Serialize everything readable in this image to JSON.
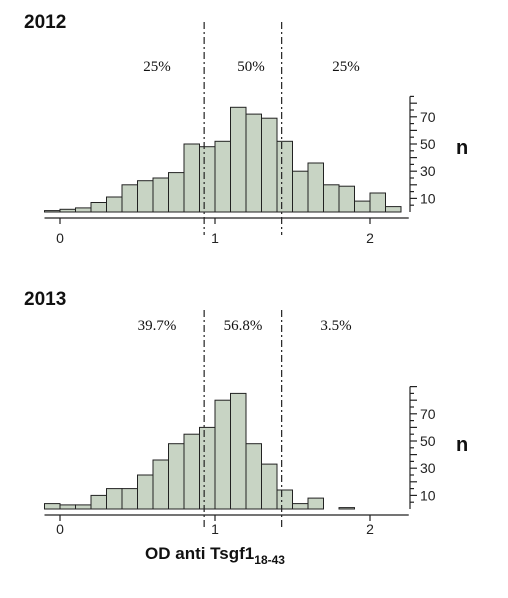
{
  "chart_data": [
    {
      "type": "bar",
      "title": "2012",
      "bin_width": 0.1,
      "bin_starts": [
        -0.1,
        0.0,
        0.1,
        0.2,
        0.3,
        0.4,
        0.5,
        0.6,
        0.7,
        0.8,
        0.9,
        1.0,
        1.1,
        1.2,
        1.3,
        1.4,
        1.5,
        1.6,
        1.7,
        1.8,
        1.9,
        2.0,
        2.1
      ],
      "values": [
        1,
        2,
        3,
        7,
        11,
        20,
        23,
        25,
        29,
        50,
        48,
        52,
        77,
        72,
        69,
        52,
        30,
        36,
        20,
        19,
        8,
        14,
        4
      ],
      "cutoffs": [
        0.93,
        1.43
      ],
      "percent_labels": [
        "25%",
        "50%",
        "25%"
      ],
      "x_ticks": [
        "0",
        "1",
        "2"
      ],
      "y_ticks": [
        "10",
        "30",
        "50",
        "70"
      ],
      "y_label": "n",
      "xlim": [
        -0.1,
        2.25
      ],
      "ylim": [
        0,
        85
      ]
    },
    {
      "type": "bar",
      "title": "2013",
      "bin_width": 0.1,
      "bin_starts": [
        -0.1,
        0.0,
        0.1,
        0.2,
        0.3,
        0.4,
        0.5,
        0.6,
        0.7,
        0.8,
        0.9,
        1.0,
        1.1,
        1.2,
        1.3,
        1.4,
        1.5,
        1.6,
        1.8
      ],
      "values": [
        4,
        3,
        3,
        10,
        15,
        15,
        25,
        36,
        48,
        55,
        60,
        80,
        85,
        48,
        33,
        14,
        4,
        8,
        1
      ],
      "cutoffs": [
        0.93,
        1.43
      ],
      "percent_labels": [
        "39.7%",
        "56.8%",
        "3.5%"
      ],
      "x_ticks": [
        "0",
        "1",
        "2"
      ],
      "y_ticks": [
        "10",
        "30",
        "50",
        "70"
      ],
      "y_label": "n",
      "xlim": [
        -0.1,
        2.25
      ],
      "ylim": [
        0,
        90
      ]
    }
  ],
  "x_axis_label": {
    "main": "OD anti Tsgf1",
    "sub": "18-43"
  }
}
